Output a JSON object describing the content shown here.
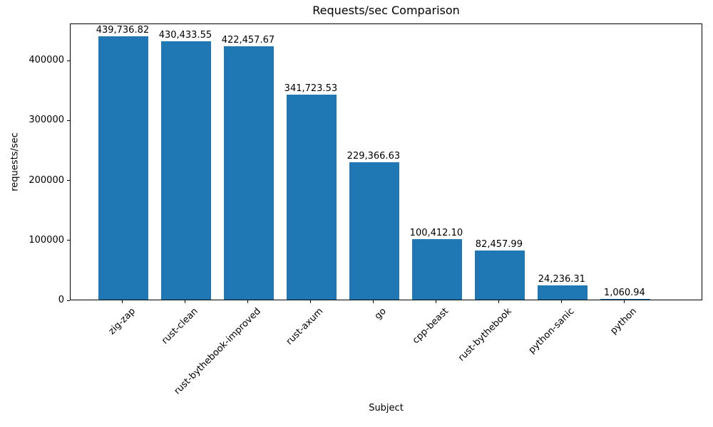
{
  "figure": {
    "background": "#ffffff"
  },
  "chart_data": {
    "type": "bar",
    "title": "Requests/sec Comparison",
    "xlabel": "Subject",
    "ylabel": "requests/sec",
    "categories": [
      "zig-zap",
      "rust-clean",
      "rust-bythebook-improved",
      "rust-axum",
      "go",
      "cpp-beast",
      "rust-bythebook",
      "python-sanic",
      "python"
    ],
    "values": [
      439736.82,
      430433.55,
      422457.67,
      341723.53,
      229366.63,
      100412.1,
      82457.99,
      24236.31,
      1060.94
    ],
    "value_labels": [
      "439,736.82",
      "430,433.55",
      "422,457.67",
      "341,723.53",
      "229,366.63",
      "100,412.10",
      "82,457.99",
      "24,236.31",
      "1,060.94"
    ],
    "bar_color": "#1f77b4",
    "axis_color": "#000000",
    "text_color": "#000000",
    "ylim": [
      0,
      461723.66
    ],
    "yticks": [
      0,
      100000,
      200000,
      300000,
      400000
    ],
    "ytick_labels": [
      "0",
      "100000",
      "200000",
      "300000",
      "400000"
    ],
    "bar_width_fraction": 0.8,
    "x_margin_units": 0.44,
    "xtick_rotation_deg": 45,
    "grid": false,
    "legend_position": "none"
  }
}
